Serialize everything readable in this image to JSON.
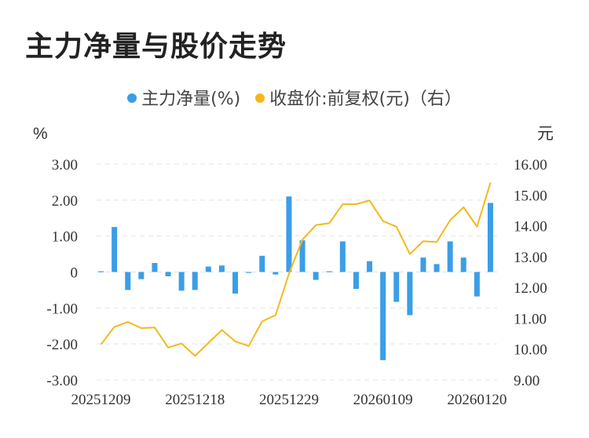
{
  "chart_data": {
    "type": "bar+line",
    "title": "主力净量与股价走势",
    "legend": [
      "主力净量(%)",
      "收盘价:前复权(元)（右）"
    ],
    "legend_placement": "top-center",
    "left_unit": "%",
    "right_unit": "元",
    "left_ylim": [
      -3,
      3
    ],
    "right_ylim": [
      9,
      16
    ],
    "left_ticks": [
      "3.00",
      "2.00",
      "1.00",
      "0",
      "-1.00",
      "-2.00",
      "-3.00"
    ],
    "right_ticks": [
      "16.00",
      "15.00",
      "14.00",
      "13.00",
      "12.00",
      "11.00",
      "10.00",
      "9.00"
    ],
    "x_tick_labels": [
      "20251209",
      "20251218",
      "20251229",
      "20260109",
      "20260120"
    ],
    "grid": true,
    "colors": {
      "bar": "#3a9ee8",
      "line": "#f5b81c",
      "grid": "#e3e3e3"
    },
    "series": [
      {
        "name": "主力净量(%)",
        "type": "bar",
        "axis": "left",
        "values": [
          0.02,
          1.25,
          -0.5,
          -0.2,
          0.25,
          -0.12,
          -0.52,
          -0.5,
          0.15,
          0.18,
          -0.6,
          -0.02,
          0.45,
          -0.07,
          2.1,
          0.88,
          -0.22,
          0.02,
          0.85,
          -0.47,
          0.3,
          -2.45,
          -0.83,
          -1.2,
          0.4,
          0.22,
          0.85,
          0.4,
          -0.68,
          1.92
        ]
      },
      {
        "name": "收盘价:前复权(元)（右）",
        "type": "line",
        "axis": "right",
        "values": [
          10.15,
          10.72,
          10.88,
          10.68,
          10.7,
          10.05,
          10.18,
          9.78,
          10.2,
          10.62,
          10.25,
          10.1,
          10.9,
          11.1,
          12.45,
          13.55,
          14.02,
          14.08,
          14.7,
          14.7,
          14.82,
          14.15,
          13.97,
          13.08,
          13.5,
          13.47,
          14.18,
          14.6,
          13.97,
          15.4
        ]
      }
    ]
  }
}
